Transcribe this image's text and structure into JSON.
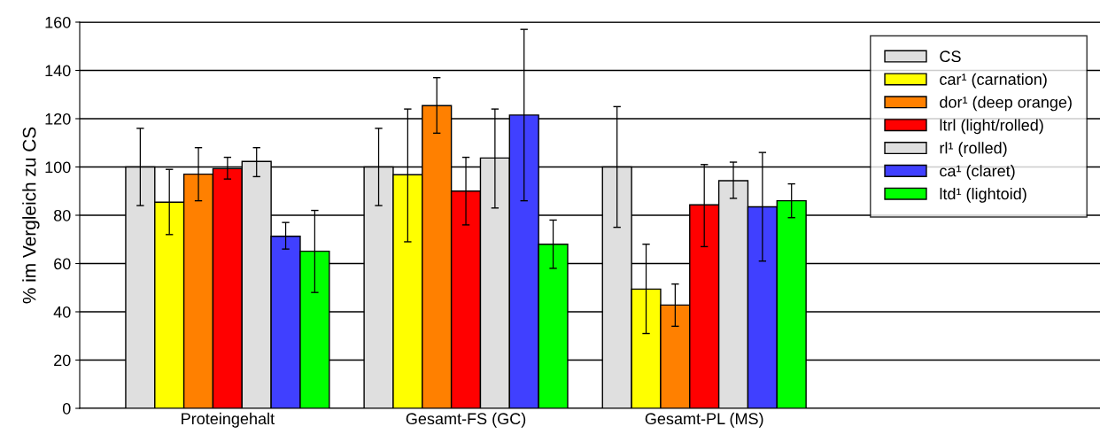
{
  "chart_data": {
    "type": "bar",
    "ylabel": "% im Vergleich zu CS",
    "categories": [
      "Proteingehalt",
      "Gesamt-FS (GC)",
      "Gesamt-PL (MS)"
    ],
    "ylim": [
      0,
      160
    ],
    "yticks": [
      0,
      20,
      40,
      60,
      80,
      100,
      120,
      140,
      160
    ],
    "grid": "y",
    "legend": "top right",
    "series": [
      {
        "name": "CS",
        "color": "#dfdfdf",
        "values": [
          100,
          100,
          100
        ],
        "errors": [
          [
            84,
            116
          ],
          [
            84,
            116
          ],
          [
            75,
            125
          ]
        ]
      },
      {
        "name": "car¹ (carnation)",
        "color": "#ffff00",
        "values": [
          85.4,
          96.8,
          49.4
        ],
        "errors": [
          [
            72,
            99
          ],
          [
            69,
            124
          ],
          [
            31,
            68
          ]
        ]
      },
      {
        "name": "dor¹ (deep orange)",
        "color": "#ff8000",
        "values": [
          97,
          125.4,
          42.8
        ],
        "errors": [
          [
            86,
            108
          ],
          [
            114,
            137
          ],
          [
            34,
            51.5
          ]
        ]
      },
      {
        "name": "ltrl (light/rolled)",
        "color": "#ff0000",
        "values": [
          99.3,
          90,
          84.3
        ],
        "errors": [
          [
            95,
            104
          ],
          [
            76,
            104
          ],
          [
            67,
            101
          ]
        ]
      },
      {
        "name": "rl¹ (rolled)",
        "color": "#dfdfdf",
        "values": [
          102.3,
          103.7,
          94.3
        ],
        "errors": [
          [
            96,
            108
          ],
          [
            83,
            124
          ],
          [
            87,
            102
          ]
        ]
      },
      {
        "name": "ca¹ (claret)",
        "color": "#4040ff",
        "values": [
          71.3,
          121.5,
          83.5
        ],
        "errors": [
          [
            66,
            77
          ],
          [
            86,
            157
          ],
          [
            61,
            106
          ]
        ]
      },
      {
        "name": "ltd¹ (lightoid)",
        "color": "#00ff00",
        "values": [
          65.1,
          68,
          86
        ],
        "errors": [
          [
            48,
            82
          ],
          [
            58,
            78
          ],
          [
            79,
            93
          ]
        ]
      }
    ]
  }
}
